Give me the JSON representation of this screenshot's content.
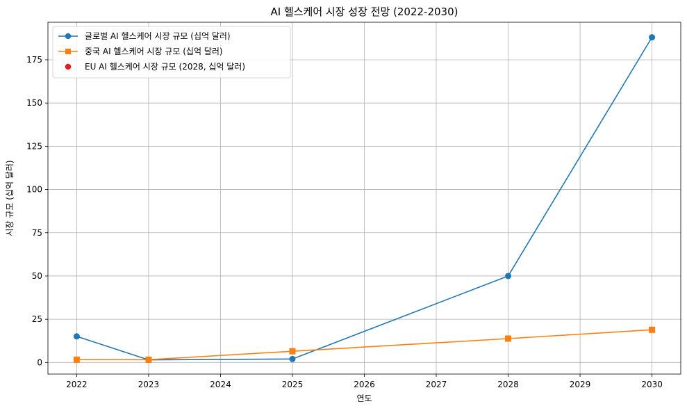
{
  "chart_data": {
    "type": "line",
    "title": "AI 헬스케어 시장 성장 전망 (2022-2030)",
    "xlabel": "연도",
    "ylabel": "시장 규모 (십억 달러)",
    "xlim": [
      2021.6,
      2030.4
    ],
    "ylim": [
      -6.7,
      196.7
    ],
    "x_ticks": [
      2022,
      2023,
      2024,
      2025,
      2026,
      2027,
      2028,
      2029,
      2030
    ],
    "y_ticks": [
      0,
      25,
      50,
      75,
      100,
      125,
      150,
      175
    ],
    "grid": true,
    "legend_position": "top-left",
    "series": [
      {
        "name": "글로벌 AI 헬스케어 시장 규모 (십억 달러)",
        "type": "line",
        "marker": "circle",
        "color": "#1f77b4",
        "x": [
          2022,
          2023,
          2025,
          2028,
          2030
        ],
        "y": [
          15.1,
          1.5,
          2.0,
          50.0,
          188.0
        ]
      },
      {
        "name": "중국 AI 헬스케어 시장 규모 (십억 달러)",
        "type": "line",
        "marker": "square",
        "color": "#ff7f0e",
        "x": [
          2022,
          2023,
          2025,
          2028,
          2030
        ],
        "y": [
          1.6,
          1.6,
          6.5,
          13.8,
          18.9
        ]
      },
      {
        "name": "EU AI 헬스케어 시장 규모 (2028, 십억 달러)",
        "type": "scatter",
        "marker": "circle",
        "color": "#e41a1c",
        "x": [],
        "y": []
      }
    ]
  }
}
